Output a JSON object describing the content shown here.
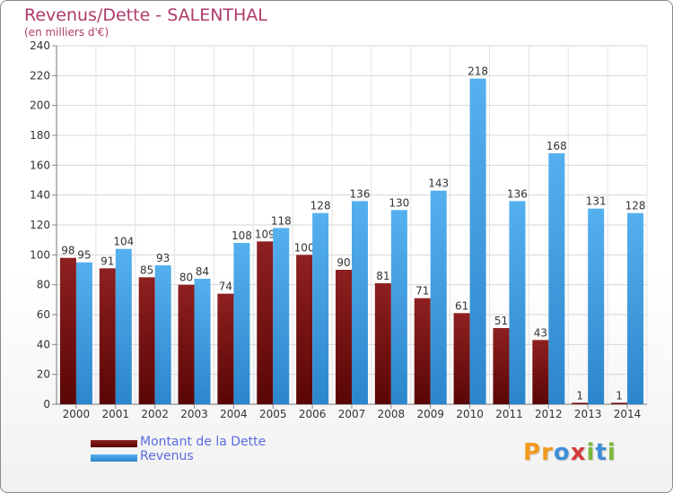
{
  "chart_data": {
    "type": "bar",
    "title": "Revenus/Dette - SALENTHAL",
    "subtitle": "(en milliers d'€)",
    "categories": [
      "2000",
      "2001",
      "2002",
      "2003",
      "2004",
      "2005",
      "2006",
      "2007",
      "2008",
      "2009",
      "2010",
      "2011",
      "2012",
      "2013",
      "2014"
    ],
    "series": [
      {
        "name": "Montant de la Dette",
        "color": "#7a1414",
        "values": [
          98,
          91,
          85,
          80,
          74,
          109,
          100,
          90,
          81,
          71,
          61,
          51,
          43,
          1,
          1
        ],
        "labels": [
          "98",
          "91",
          "85",
          "80",
          "74",
          "109",
          "100",
          "90",
          "81",
          "71",
          "61",
          "51",
          "43",
          "1",
          "1"
        ]
      },
      {
        "name": "Revenus",
        "color": "#3f9ee0",
        "values": [
          95,
          104,
          93,
          84,
          108,
          118,
          128,
          136,
          130,
          143,
          218,
          136,
          168,
          131,
          128
        ],
        "labels": [
          "95",
          "104",
          "93",
          "84",
          "108",
          "118",
          "128",
          "136",
          "130",
          "143",
          "218",
          "136",
          "168",
          "131",
          "128"
        ]
      }
    ],
    "ylim": [
      0,
      240
    ],
    "yticks": [
      "0",
      "20",
      "40",
      "60",
      "80",
      "100",
      "120",
      "140",
      "160",
      "180",
      "200",
      "220",
      "240"
    ],
    "grid": true,
    "legend": "bottom-left"
  },
  "brand": {
    "letters": [
      {
        "ch": "P",
        "color": "#f29a1c"
      },
      {
        "ch": "r",
        "color": "#f29a1c"
      },
      {
        "ch": "o",
        "color": "#3d8fd6"
      },
      {
        "ch": "x",
        "color": "#d63a3a"
      },
      {
        "ch": "i",
        "color": "#7bb83a"
      },
      {
        "ch": "t",
        "color": "#3d8fd6"
      },
      {
        "ch": "i",
        "color": "#7bb83a"
      }
    ]
  }
}
